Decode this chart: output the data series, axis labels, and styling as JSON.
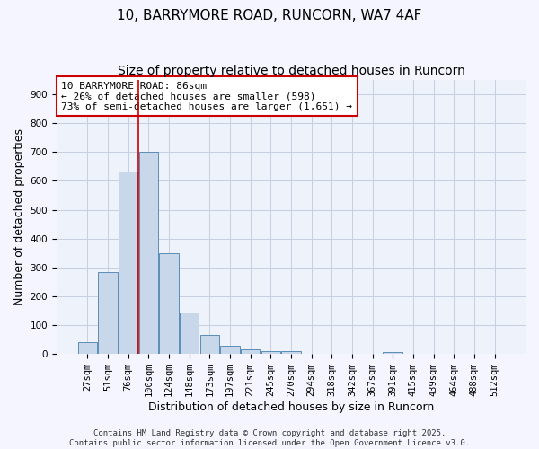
{
  "title1": "10, BARRYMORE ROAD, RUNCORN, WA7 4AF",
  "title2": "Size of property relative to detached houses in Runcorn",
  "xlabel": "Distribution of detached houses by size in Runcorn",
  "ylabel": "Number of detached properties",
  "bar_color": "#c8d8ea",
  "bar_edge_color": "#5b8db8",
  "background_color": "#eef2fa",
  "grid_color": "#c5cfe0",
  "fig_background": "#f5f5ff",
  "bins": [
    "27sqm",
    "51sqm",
    "76sqm",
    "100sqm",
    "124sqm",
    "148sqm",
    "173sqm",
    "197sqm",
    "221sqm",
    "245sqm",
    "270sqm",
    "294sqm",
    "318sqm",
    "342sqm",
    "367sqm",
    "391sqm",
    "415sqm",
    "439sqm",
    "464sqm",
    "488sqm",
    "512sqm"
  ],
  "values": [
    40,
    285,
    632,
    700,
    350,
    145,
    65,
    28,
    15,
    11,
    11,
    0,
    0,
    0,
    0,
    8,
    0,
    0,
    0,
    0,
    0
  ],
  "ylim": [
    0,
    950
  ],
  "yticks": [
    0,
    100,
    200,
    300,
    400,
    500,
    600,
    700,
    800,
    900
  ],
  "red_line_x": 2.5,
  "annotation_text": "10 BARRYMORE ROAD: 86sqm\n← 26% of detached houses are smaller (598)\n73% of semi-detached houses are larger (1,651) →",
  "annotation_box_color": "#ffffff",
  "annotation_border_color": "#cc0000",
  "footer": "Contains HM Land Registry data © Crown copyright and database right 2025.\nContains public sector information licensed under the Open Government Licence v3.0.",
  "title_fontsize": 11,
  "subtitle_fontsize": 10,
  "axis_label_fontsize": 9,
  "tick_fontsize": 7.5,
  "annotation_fontsize": 8,
  "footer_fontsize": 6.5
}
